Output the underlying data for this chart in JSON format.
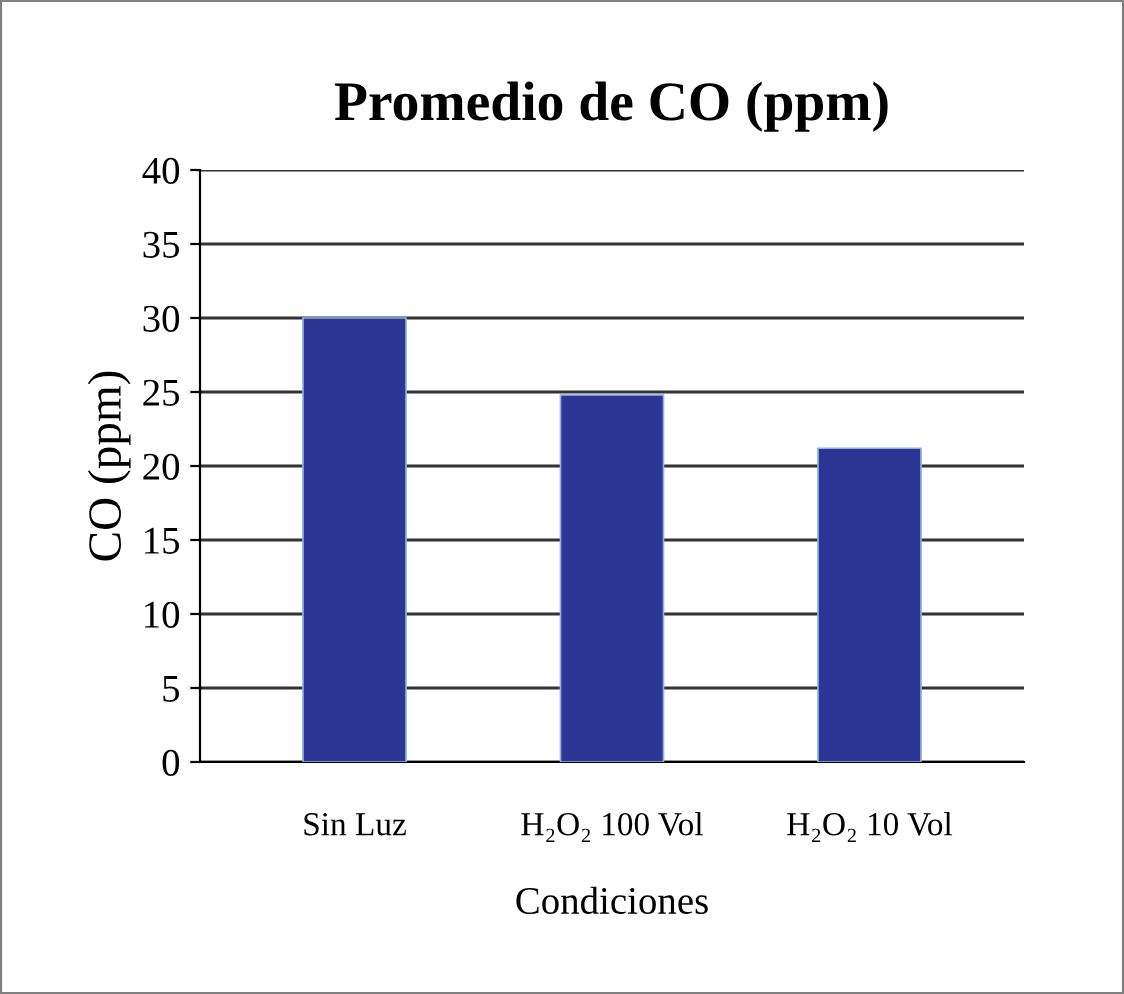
{
  "chart_data": {
    "type": "bar",
    "title": "Promedio de CO (ppm)",
    "xlabel": "Condiciones",
    "ylabel": "CO (ppm)",
    "categories": [
      "Sin Luz",
      "H₂O₂ 100 Vol",
      "H₂O₂ 10 Vol"
    ],
    "values": [
      30,
      24.8,
      21.2
    ],
    "color": "#2b3593",
    "ylim": [
      0,
      40
    ],
    "yticks": [
      0,
      5,
      10,
      15,
      20,
      25,
      30,
      35,
      40
    ],
    "grid": "y",
    "legend": false
  }
}
